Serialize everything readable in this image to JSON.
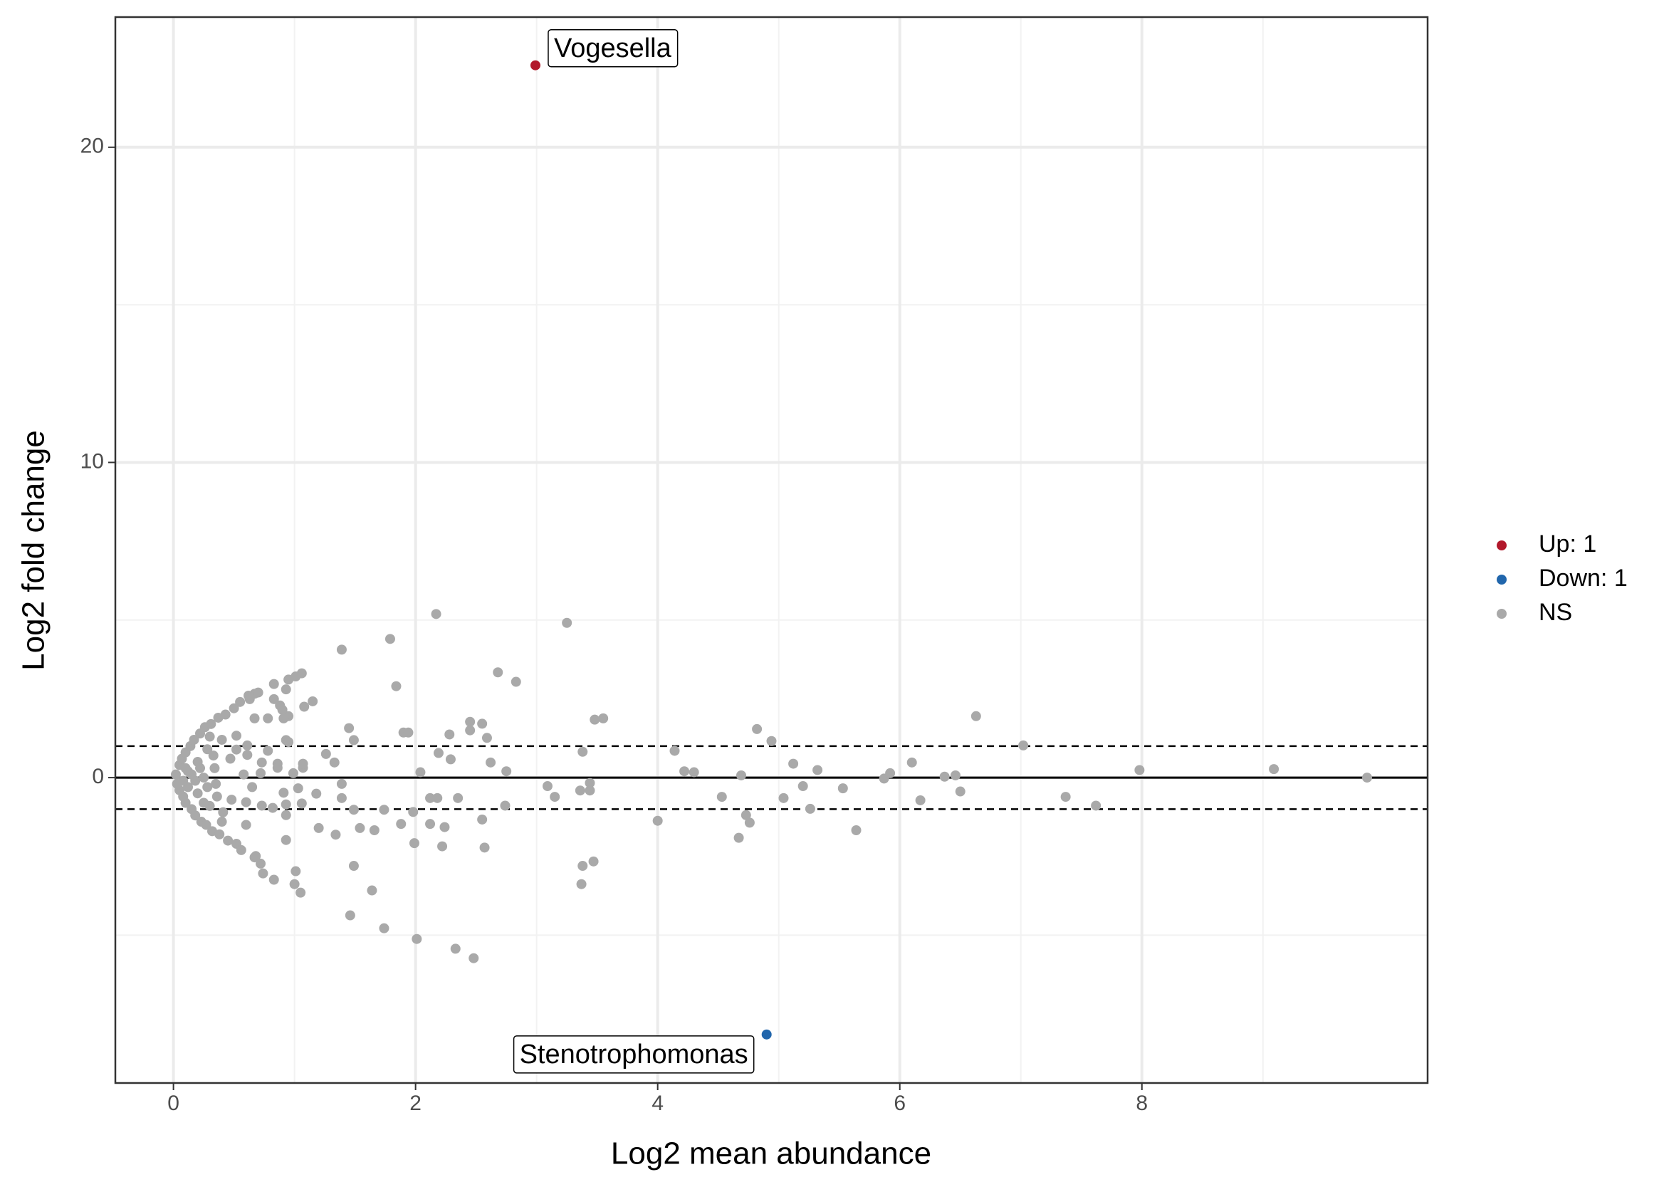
{
  "chart_data": {
    "type": "scatter",
    "xlabel": "Log2 mean abundance",
    "ylabel": "Log2 fold change",
    "xlim": [
      -0.48,
      10.36
    ],
    "ylim": [
      -9.69,
      24.13
    ],
    "xticks": [
      0,
      2,
      4,
      6,
      8
    ],
    "yticks": [
      0,
      10,
      20
    ],
    "xminor": [
      1,
      3,
      5,
      7,
      9
    ],
    "yminor": [
      -5,
      5,
      15
    ],
    "grid": true,
    "hline": 0,
    "thresholds": [
      -1,
      1
    ],
    "legend": "right",
    "series": [
      {
        "name": "Up: 1",
        "color": "#b2182b",
        "x": [
          2.99
        ],
        "values": [
          22.6
        ],
        "labels": [
          "Vogesella"
        ]
      },
      {
        "name": "Down: 1",
        "color": "#2166ac",
        "x": [
          4.9
        ],
        "values": [
          -8.15
        ],
        "labels": [
          "Stenotrophomonas"
        ]
      },
      {
        "name": "NS",
        "color": "#a9a9a9",
        "x": [
          2.17,
          3.25,
          1.39,
          1.79,
          1.84,
          2.68,
          2.83,
          3.48,
          3.55,
          2.45,
          2.55,
          1.9,
          1.94,
          2.28,
          1.45,
          1.49,
          2.59,
          2.45,
          2.19,
          2.29,
          2.62,
          2.75,
          2.04,
          1.33,
          1.26,
          3.38,
          3.44,
          3.44,
          3.36,
          3.09,
          3.15,
          2.74,
          2.35,
          2.12,
          2.18,
          1.98,
          2.12,
          2.24,
          1.88,
          2.55,
          1.99,
          2.22,
          2.57,
          1.66,
          1.54,
          1.74,
          1.49,
          1.39,
          1.39,
          1.18,
          1.2,
          1.34,
          1.49,
          1.64,
          1.46,
          1.74,
          2.01,
          2.33,
          2.48,
          3.38,
          3.47,
          3.37,
          1.01,
          1.05,
          1.0,
          0.83,
          0.74,
          0.72,
          0.67,
          0.93,
          0.93,
          0.82,
          0.6,
          0.68,
          1.06,
          0.93,
          0.91,
          0.73,
          0.6,
          1.07,
          1.07,
          0.86,
          0.86,
          0.99,
          1.03,
          0.72,
          0.73,
          0.78,
          0.95,
          0.93,
          0.95,
          0.9,
          0.83,
          0.88,
          0.78,
          0.83,
          0.93,
          0.95,
          1.06,
          1.15,
          1.08,
          1.01,
          0.91,
          0.67,
          0.67,
          0.63,
          0.61,
          0.61,
          0.52,
          0.52,
          4.0,
          4.14,
          4.22,
          4.3,
          4.53,
          4.69,
          4.82,
          4.94,
          4.73,
          4.76,
          4.67,
          5.04,
          5.12,
          5.2,
          5.26,
          5.32,
          5.53,
          5.64,
          5.87,
          5.92,
          6.1,
          6.17,
          6.37,
          6.46,
          6.5,
          6.63,
          7.02,
          7.37,
          7.62,
          7.98,
          9.09,
          9.86,
          0.02,
          0.03,
          0.05,
          0.05,
          0.07,
          0.08,
          0.1,
          0.1,
          0.12,
          0.12,
          0.14,
          0.15,
          0.17,
          0.18,
          0.2,
          0.2,
          0.22,
          0.23,
          0.25,
          0.26,
          0.27,
          0.28,
          0.3,
          0.31,
          0.32,
          0.34,
          0.35,
          0.37,
          0.38,
          0.4,
          0.41,
          0.43,
          0.45,
          0.47,
          0.48,
          0.5,
          0.52,
          0.55,
          0.56,
          0.58,
          0.62,
          0.65,
          0.7,
          0.15,
          0.18,
          0.22,
          0.28,
          0.33,
          0.36,
          0.1,
          0.08,
          0.25,
          0.3,
          0.4
        ],
        "values": [
          5.19,
          4.91,
          4.06,
          4.4,
          2.9,
          3.34,
          3.04,
          1.84,
          1.88,
          1.77,
          1.71,
          1.43,
          1.43,
          1.37,
          1.57,
          1.19,
          1.26,
          1.5,
          0.78,
          0.58,
          0.48,
          0.2,
          0.17,
          0.48,
          0.75,
          0.82,
          -0.17,
          -0.41,
          -0.41,
          -0.27,
          -0.61,
          -0.89,
          -0.65,
          -0.65,
          -0.65,
          -1.09,
          -1.47,
          -1.57,
          -1.47,
          -1.33,
          -2.08,
          -2.18,
          -2.22,
          -1.67,
          -1.6,
          -1.02,
          -1.02,
          -0.2,
          -0.65,
          -0.51,
          -1.6,
          -1.81,
          -2.8,
          -3.58,
          -4.37,
          -4.78,
          -5.12,
          -5.43,
          -5.73,
          -2.8,
          -2.66,
          -3.38,
          -2.97,
          -3.65,
          -3.38,
          -3.24,
          -3.04,
          -2.73,
          -2.53,
          -1.98,
          -1.19,
          -0.96,
          -1.5,
          -2.49,
          -0.82,
          -0.85,
          -0.48,
          -0.89,
          -0.78,
          0.31,
          0.44,
          0.44,
          0.31,
          0.14,
          -0.34,
          0.14,
          0.48,
          0.85,
          1.13,
          1.19,
          1.95,
          2.15,
          2.49,
          2.29,
          1.88,
          2.97,
          2.8,
          3.11,
          3.31,
          2.42,
          2.25,
          3.21,
          1.88,
          1.88,
          2.66,
          2.49,
          0.72,
          1.02,
          1.33,
          0.89,
          -1.37,
          0.85,
          0.2,
          0.17,
          -0.61,
          0.07,
          1.54,
          1.16,
          -1.19,
          -1.43,
          -1.91,
          -0.65,
          0.44,
          -0.27,
          -0.99,
          0.24,
          -0.34,
          -1.67,
          -0.03,
          0.14,
          0.48,
          -0.72,
          0.03,
          0.07,
          -0.44,
          1.95,
          1.02,
          -0.61,
          -0.89,
          0.24,
          0.27,
          0.0,
          0.1,
          -0.2,
          0.4,
          -0.4,
          0.6,
          -0.6,
          0.8,
          -0.8,
          0.2,
          -0.3,
          1.0,
          -1.0,
          1.2,
          -1.2,
          0.5,
          -0.5,
          1.4,
          -1.4,
          0.0,
          1.6,
          -1.5,
          0.9,
          -0.9,
          1.7,
          -1.7,
          0.3,
          -0.2,
          1.9,
          -1.8,
          1.2,
          -1.1,
          2.0,
          -2.0,
          0.6,
          -0.7,
          2.2,
          -2.1,
          2.4,
          -2.3,
          0.1,
          2.6,
          -0.3,
          2.7,
          0.1,
          -0.1,
          0.3,
          -0.3,
          0.7,
          -0.6,
          0.3,
          -0.1,
          -0.8,
          1.3,
          -1.4
        ]
      }
    ]
  }
}
